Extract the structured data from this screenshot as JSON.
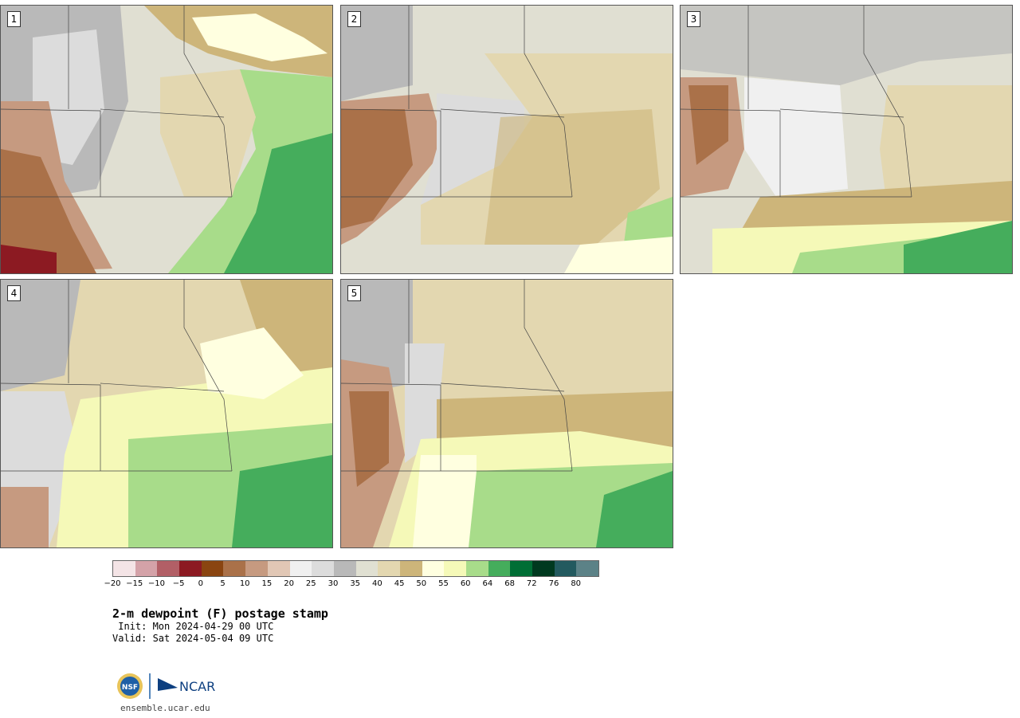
{
  "panels": [
    {
      "label": "1"
    },
    {
      "label": "2"
    },
    {
      "label": "3"
    },
    {
      "label": "4"
    },
    {
      "label": "5"
    }
  ],
  "colorbar": {
    "colors": [
      "#f4e4e6",
      "#d4a2a8",
      "#b25f66",
      "#8c1a22",
      "#8a4511",
      "#aa7149",
      "#c69a80",
      "#e1c7b5",
      "#f0f0f0",
      "#dcdcdc",
      "#b9b9b9",
      "#e0e0d2",
      "#e3d7b0",
      "#cdb57a",
      "#ffffe0",
      "#f5f9b8",
      "#a8dc8a",
      "#45ad5c",
      "#006e35",
      "#00391f",
      "#235a5f",
      "#5c8287"
    ],
    "ticks": [
      "−20",
      "−15",
      "−10",
      "−5",
      "0",
      "5",
      "10",
      "15",
      "20",
      "25",
      "30",
      "35",
      "40",
      "45",
      "50",
      "55",
      "60",
      "64",
      "68",
      "72",
      "76",
      "80"
    ]
  },
  "title": "2-m dewpoint (F) postage stamp",
  "init": " Init: Mon 2024-04-29 00 UTC",
  "valid": "Valid: Sat 2024-05-04 09 UTC",
  "logo": {
    "org1": "NSF",
    "org2": "NCAR"
  },
  "website": "ensemble.ucar.edu"
}
